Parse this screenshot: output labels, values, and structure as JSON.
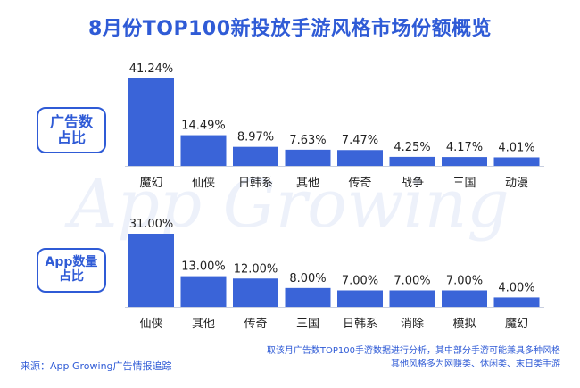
{
  "title": "8月份TOP100新投放手游风格市场份额概览",
  "watermark": "App Growing",
  "section_labels": {
    "ads": [
      "广告数",
      "占比"
    ],
    "app": [
      "App数量",
      "占比"
    ]
  },
  "footer": {
    "source": "来源：App Growing广告情报追踪",
    "notes": [
      "取该月广告数TOP100手游数据进行分析，其中部分手游可能兼具多种风格",
      "其他风格多为网赚类、休闲类、末日类手游"
    ]
  },
  "colors": {
    "bar": "#3a64d8",
    "axis": "#c8cfe0",
    "title": "#2f5bd6",
    "text": "#222222"
  },
  "chart_data": [
    {
      "type": "bar",
      "title": "",
      "categories": [
        "魔幻",
        "仙侠",
        "日韩系",
        "其他",
        "传奇",
        "战争",
        "三国",
        "动漫"
      ],
      "values": [
        41.24,
        14.49,
        8.97,
        7.63,
        7.47,
        4.25,
        4.17,
        4.01
      ],
      "value_labels": [
        "41.24%",
        "14.49%",
        "8.97%",
        "7.63%",
        "7.47%",
        "4.25%",
        "4.17%",
        "4.01%"
      ],
      "xlabel": "",
      "ylabel": "",
      "ylim": [
        0,
        41.24
      ],
      "grid": false,
      "legend": "none"
    },
    {
      "type": "bar",
      "title": "",
      "categories": [
        "仙侠",
        "其他",
        "传奇",
        "三国",
        "日韩系",
        "消除",
        "模拟",
        "魔幻"
      ],
      "values": [
        31.0,
        13.0,
        12.0,
        8.0,
        7.0,
        7.0,
        7.0,
        4.0
      ],
      "value_labels": [
        "31.00%",
        "13.00%",
        "12.00%",
        "8.00%",
        "7.00%",
        "7.00%",
        "7.00%",
        "4.00%"
      ],
      "xlabel": "",
      "ylabel": "",
      "ylim": [
        0,
        31.0
      ],
      "grid": false,
      "legend": "none"
    }
  ]
}
